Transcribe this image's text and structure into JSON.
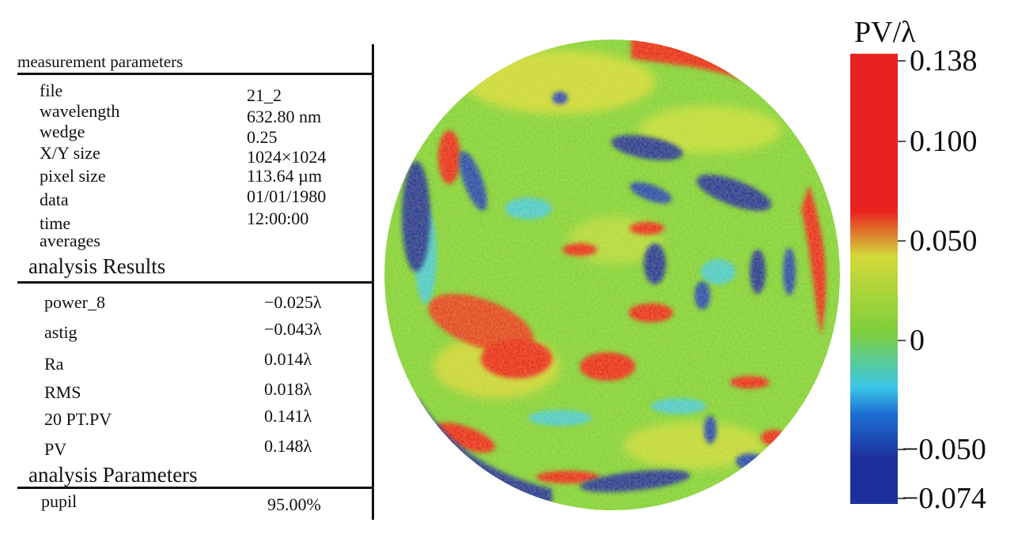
{
  "measurement_parameters": {
    "header": "measurement parameters",
    "rows": [
      {
        "label": "file",
        "value": "21_2"
      },
      {
        "label": "wavelength",
        "value": "632.80 nm"
      },
      {
        "label": "wedge",
        "value": "0.25"
      },
      {
        "label": "X/Y size",
        "value": "1024×1024"
      },
      {
        "label": "pixel size",
        "value": "113.64 µm"
      },
      {
        "label": "data",
        "value": "01/01/1980"
      },
      {
        "label": "time",
        "value": "12:00:00"
      },
      {
        "label": "averages",
        "value": ""
      }
    ]
  },
  "analysis_results": {
    "header": "analysis Results",
    "rows": [
      {
        "label": "power_8",
        "value": "−0.025λ"
      },
      {
        "label": "astig",
        "value": "−0.043λ"
      },
      {
        "label": "Ra",
        "value": "0.014λ"
      },
      {
        "label": "RMS",
        "value": "0.018λ"
      },
      {
        "label": "20 PT.PV",
        "value": "0.141λ"
      },
      {
        "label": "PV",
        "value": "0.148λ"
      }
    ]
  },
  "analysis_parameters": {
    "header": "analysis Parameters",
    "rows": [
      {
        "label": "pupil",
        "value": "95.00%"
      }
    ]
  },
  "colorbar": {
    "title": "PV/λ",
    "ticks": [
      "0.138",
      "0.100",
      "0.050",
      "0",
      "−0.050",
      "−0.074"
    ],
    "colors": {
      "high": "#e8231f",
      "mid": "#7ccf3c",
      "low": "#1d2f9c",
      "cyan": "#3cc6e8"
    }
  }
}
